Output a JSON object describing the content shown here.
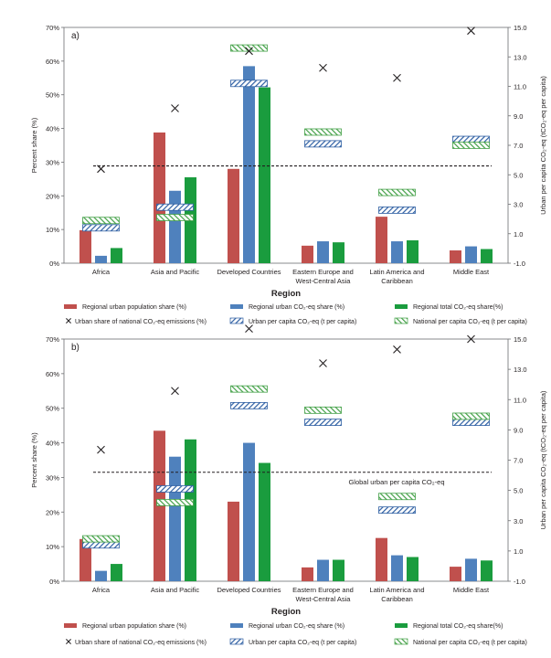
{
  "chart_data": [
    {
      "type": "bar",
      "panel_label": "a)",
      "categories": [
        "Africa",
        "Asia and Pacific",
        "Developed Countries",
        "Eastern Europe and West-Central Asia",
        "Latin America and Caribbean",
        "Middle East"
      ],
      "category_lines": [
        [
          "Africa"
        ],
        [
          "Asia and Pacific"
        ],
        [
          "Developed Countries"
        ],
        [
          "Eastern Europe and",
          "West-Central Asia"
        ],
        [
          "Latin America and",
          "Caribbean"
        ],
        [
          "Middle East"
        ]
      ],
      "xlabel": "Region",
      "ylabel": "Percent share (%)",
      "y2label": "Urban per capita CO₂-eq (tCO₂-eq per capita)",
      "ylim": [
        0,
        70
      ],
      "y2lim": [
        -1,
        15
      ],
      "yticks": [
        "0%",
        "10%",
        "20%",
        "30%",
        "40%",
        "50%",
        "60%",
        "70%"
      ],
      "y2ticks": [
        "-1.0",
        "1.0",
        "3.0",
        "5.0",
        "7.0",
        "9.0",
        "11.0",
        "13.0",
        "15.0"
      ],
      "series": [
        {
          "name": "Regional urban population share (%)",
          "values": [
            9.8,
            38.8,
            28.0,
            5.2,
            13.8,
            3.8
          ]
        },
        {
          "name": "Regional urban CO₂-eq share (%)",
          "values": [
            2.2,
            21.5,
            58.5,
            6.5,
            6.5,
            5.0
          ]
        },
        {
          "name": "Regional total CO₂-eq share(%)",
          "values": [
            4.5,
            25.5,
            52.2,
            6.2,
            6.8,
            4.2
          ]
        }
      ],
      "markers": {
        "name": "Urban share of national CO₂-eq emissions (%)",
        "values": [
          28,
          46,
          63,
          58,
          55,
          69
        ]
      },
      "urban_per_capita": {
        "name": "Urban per capita CO₂-eq (t per capita)",
        "values": [
          1.4,
          2.8,
          11.2,
          7.1,
          2.6,
          7.4
        ]
      },
      "national_per_capita": {
        "name": "National per capita CO₂-eq (t per capita)",
        "values": [
          1.9,
          2.1,
          13.6,
          7.9,
          3.8,
          7.0
        ]
      },
      "global_line": {
        "value": 5.6,
        "label": ""
      }
    },
    {
      "type": "bar",
      "panel_label": "b)",
      "categories": [
        "Africa",
        "Asia and Pacific",
        "Developed Countries",
        "Eastern Europe and West-Central Asia",
        "Latin America and Caribbean",
        "Middle East"
      ],
      "category_lines": [
        [
          "Africa"
        ],
        [
          "Asia and Pacific"
        ],
        [
          "Developed Countries"
        ],
        [
          "Eastern Europe and",
          "West-Central Asia"
        ],
        [
          "Latin America and",
          "Caribbean"
        ],
        [
          "Middle East"
        ]
      ],
      "xlabel": "Region",
      "ylabel": "Percent share (%)",
      "y2label": "Urban per capita CO₂-eq (tCO₂-eq per capita)",
      "ylim": [
        0,
        70
      ],
      "y2lim": [
        -1,
        15
      ],
      "yticks": [
        "0%",
        "10%",
        "20%",
        "30%",
        "40%",
        "50%",
        "60%",
        "70%"
      ],
      "y2ticks": [
        "-1.0",
        "1.0",
        "3.0",
        "5.0",
        "7.0",
        "9.0",
        "11.0",
        "13.0",
        "15.0"
      ],
      "series": [
        {
          "name": "Regional urban population share (%)",
          "values": [
            12.2,
            43.5,
            23.0,
            4.0,
            12.5,
            4.2
          ]
        },
        {
          "name": "Regional urban CO₂-eq share (%)",
          "values": [
            3.0,
            36.0,
            40.0,
            6.2,
            7.5,
            6.5
          ]
        },
        {
          "name": "Regional total CO₂-eq share(%)",
          "values": [
            5.0,
            41.0,
            34.2,
            6.2,
            7.0,
            6.0
          ]
        }
      ],
      "markers": {
        "name": "Urban share of national CO₂-eq emissions (%)",
        "values": [
          38,
          55,
          73,
          63,
          67,
          70
        ]
      },
      "urban_per_capita": {
        "name": "Urban per capita CO₂-eq (t per capita)",
        "values": [
          1.4,
          5.1,
          10.6,
          9.5,
          3.7,
          9.5
        ]
      },
      "national_per_capita": {
        "name": "National per capita CO₂-eq (t per capita)",
        "values": [
          1.8,
          4.2,
          11.7,
          10.3,
          4.6,
          9.9
        ]
      },
      "global_line": {
        "value": 6.2,
        "label": "Global urban per capita CO₂-eq"
      }
    }
  ],
  "colors": {
    "population": "#c0504d",
    "urban_share": "#4f81bd",
    "total_share": "#1a9c3e",
    "hatch_blue": "#2e5fa3",
    "hatch_green": "#43a047",
    "text": "#231f20"
  }
}
